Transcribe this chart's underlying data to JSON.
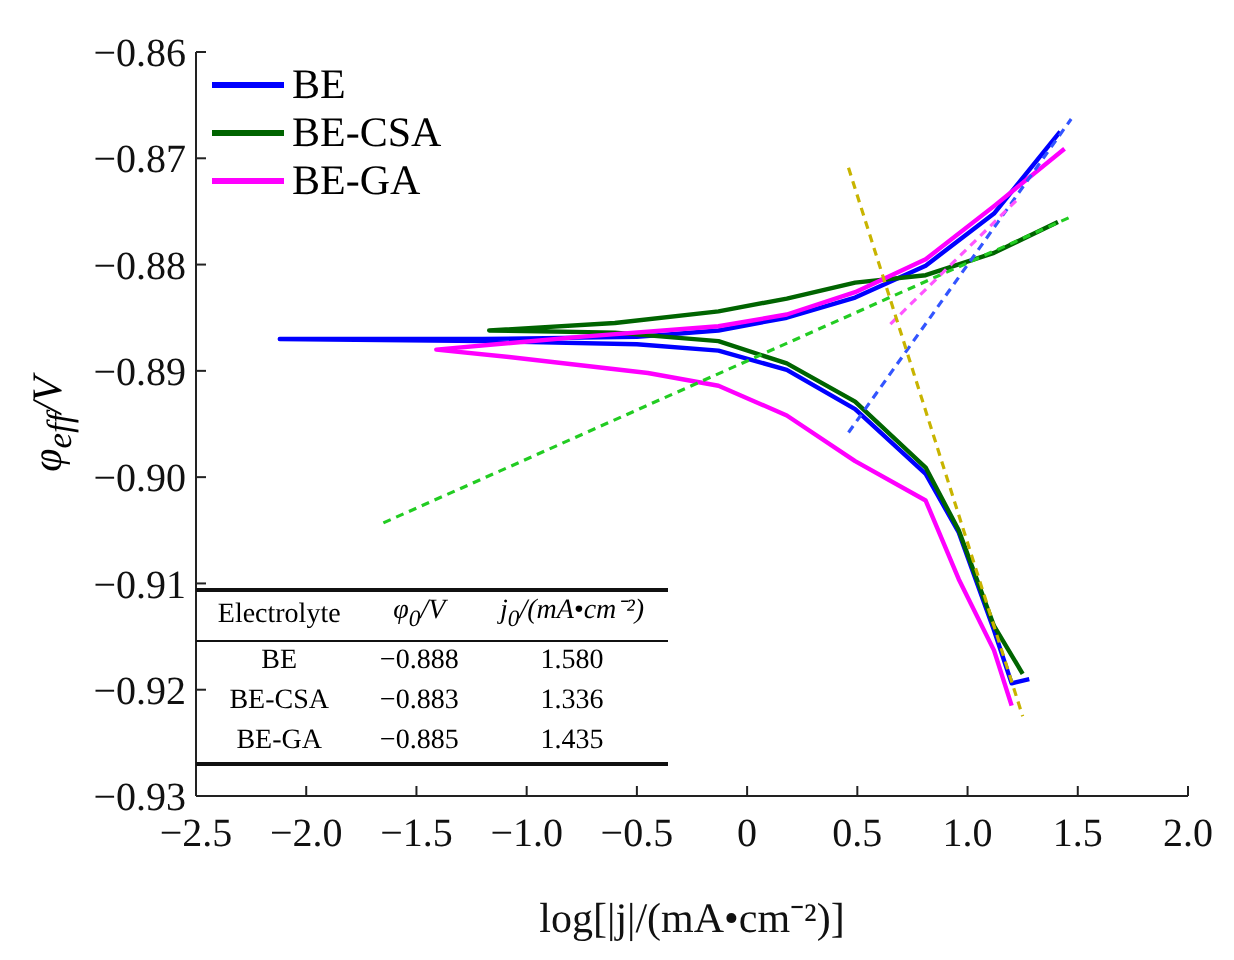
{
  "chart_data": {
    "type": "line",
    "xlabel": "log[|j|/(mA•cm⁻²)]",
    "ylabel": "φ$_{eff}$/V",
    "xlim": [
      -2.5,
      2.0
    ],
    "ylim": [
      -0.93,
      -0.86
    ],
    "xticks": [
      {
        "value": -2.5,
        "label": "−2.5"
      },
      {
        "value": -2.0,
        "label": "−2.0"
      },
      {
        "value": -1.5,
        "label": "−1.5"
      },
      {
        "value": -1.0,
        "label": "−1.0"
      },
      {
        "value": -0.5,
        "label": "−0.5"
      },
      {
        "value": 0,
        "label": "0"
      },
      {
        "value": 0.5,
        "label": "0.5"
      },
      {
        "value": 1.0,
        "label": "1.0"
      },
      {
        "value": 1.5,
        "label": "1.5"
      },
      {
        "value": 2.0,
        "label": "2.0"
      }
    ],
    "yticks": [
      {
        "value": -0.86,
        "label": "−0.86"
      },
      {
        "value": -0.87,
        "label": "−0.87"
      },
      {
        "value": -0.88,
        "label": "−0.88"
      },
      {
        "value": -0.89,
        "label": "−0.89"
      },
      {
        "value": -0.9,
        "label": "−0.90"
      },
      {
        "value": -0.91,
        "label": "−0.91"
      },
      {
        "value": -0.92,
        "label": "−0.92"
      },
      {
        "value": -0.93,
        "label": "−0.93"
      }
    ],
    "legend": "top left",
    "marker": "none",
    "line_style": "solid",
    "series": [
      {
        "name": "BE",
        "color": "#0000ff",
        "x": [
          1.42,
          1.12,
          0.81,
          0.49,
          0.18,
          -0.13,
          -0.5,
          -1.2,
          -2.12,
          -1.2,
          -0.5,
          -0.13,
          0.18,
          0.49,
          0.81,
          0.96,
          1.12,
          1.2,
          1.28
        ],
        "values": [
          -0.8675,
          -0.8752,
          -0.8801,
          -0.8831,
          -0.885,
          -0.8862,
          -0.8868,
          -0.887,
          -0.887,
          -0.8872,
          -0.8875,
          -0.8881,
          -0.8899,
          -0.8936,
          -0.8997,
          -0.9052,
          -0.9144,
          -0.9194,
          -0.919
        ]
      },
      {
        "name": "BE-CSA",
        "color": "#006400",
        "x": [
          1.41,
          1.12,
          0.81,
          0.49,
          0.18,
          -0.13,
          -0.6,
          -1.17,
          -0.6,
          -0.13,
          0.18,
          0.49,
          0.81,
          0.96,
          1.12,
          1.25
        ],
        "values": [
          -0.876,
          -0.8789,
          -0.881,
          -0.8817,
          -0.8832,
          -0.8844,
          -0.8855,
          -0.8862,
          -0.8864,
          -0.8872,
          -0.8893,
          -0.8929,
          -0.8991,
          -0.905,
          -0.914,
          -0.9185
        ]
      },
      {
        "name": "BE-GA",
        "color": "#ff00ff",
        "x": [
          1.44,
          1.12,
          0.81,
          0.49,
          0.18,
          -0.13,
          -0.76,
          -1.41,
          -1.08,
          -0.45,
          -0.13,
          0.18,
          0.49,
          0.81,
          0.96,
          1.12,
          1.2
        ],
        "values": [
          -0.8691,
          -0.8745,
          -0.8795,
          -0.8826,
          -0.8847,
          -0.8858,
          -0.8868,
          -0.888,
          -0.8887,
          -0.8902,
          -0.8914,
          -0.8942,
          -0.8985,
          -0.9022,
          -0.9096,
          -0.9163,
          -0.9215
        ]
      },
      {
        "color": "#22cc22",
        "line_style": "dashed",
        "x": [
          -1.65,
          1.47
        ],
        "values": [
          -0.9043,
          -0.8755
        ]
      },
      {
        "color": "#3355ff",
        "line_style": "dashed",
        "x": [
          0.46,
          1.47
        ],
        "values": [
          -0.8958,
          -0.8663
        ]
      },
      {
        "color": "#ff55ff",
        "line_style": "dashed",
        "x": [
          0.65,
          1.22
        ],
        "values": [
          -0.8856,
          -0.874
        ]
      },
      {
        "color": "#c8b400",
        "line_style": "dashed",
        "x": [
          0.46,
          1.25
        ],
        "values": [
          -0.8709,
          -0.9225
        ]
      }
    ],
    "annotations": [
      "Electrolyte",
      "φ$_{0}$/V",
      "j$_{0}$/(mA•cm⁻²)",
      "BE",
      "−0.888",
      "1.580",
      "BE-CSA",
      "−0.883",
      "1.336",
      "BE-GA",
      "−0.885",
      "1.435"
    ]
  }
}
